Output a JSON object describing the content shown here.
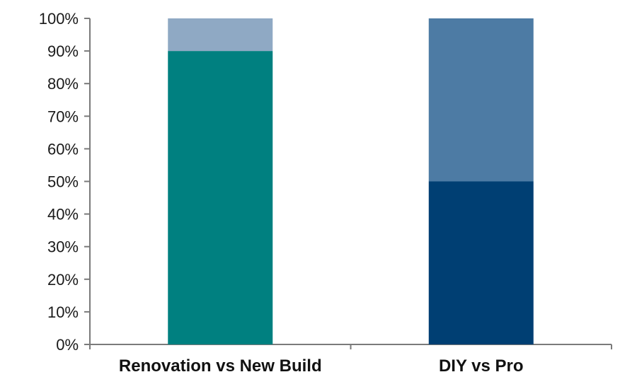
{
  "chart_data": {
    "type": "bar",
    "stacked": true,
    "categories": [
      "Renovation vs New Build",
      "DIY vs Pro"
    ],
    "series": [
      {
        "values": [
          90,
          50
        ]
      },
      {
        "values": [
          10,
          50
        ]
      }
    ],
    "segment_colors": [
      [
        "#008080",
        "#8FA9C4"
      ],
      [
        "#003F73",
        "#4D7BA4"
      ]
    ],
    "y_ticks": [
      "0%",
      "10%",
      "20%",
      "30%",
      "40%",
      "50%",
      "60%",
      "70%",
      "80%",
      "90%",
      "100%"
    ],
    "ylim": [
      0,
      100
    ],
    "grid": false,
    "legend": "none"
  }
}
